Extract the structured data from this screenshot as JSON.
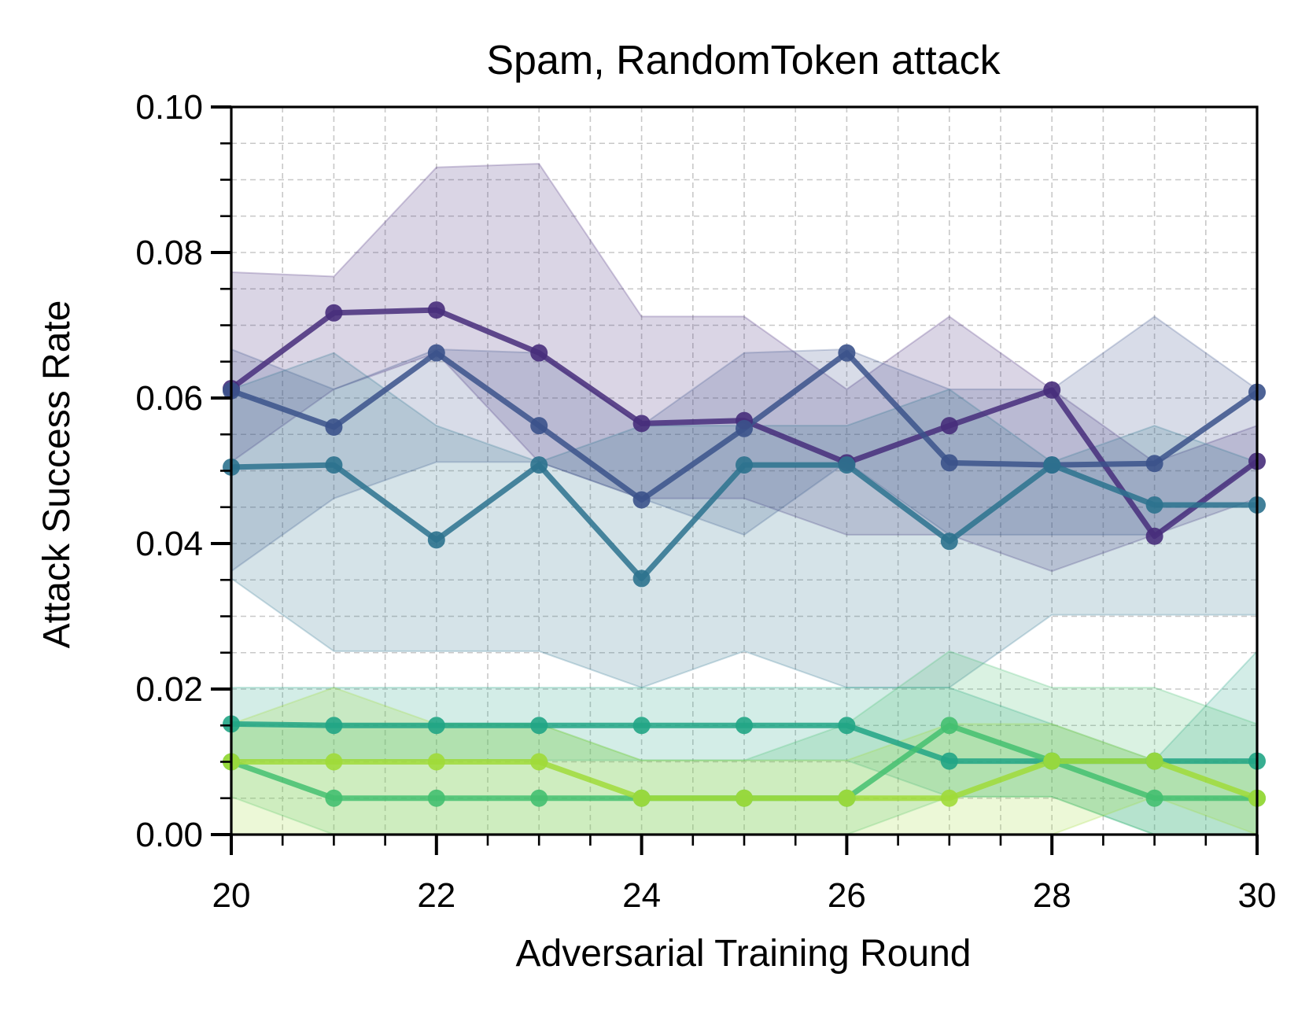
{
  "chart_data": {
    "type": "line",
    "title": "Spam, RandomToken attack",
    "xlabel": "Adversarial Training Round",
    "ylabel": "Attack Success Rate",
    "xlim": [
      20,
      30
    ],
    "ylim": [
      0,
      0.1
    ],
    "x_ticks": [
      "20",
      "22",
      "24",
      "26",
      "28",
      "30"
    ],
    "y_ticks": [
      "0.00",
      "0.02",
      "0.04",
      "0.06",
      "0.08",
      "0.10"
    ],
    "grid": true,
    "legend": "none",
    "x": [
      20,
      21,
      22,
      23,
      24,
      25,
      26,
      27,
      28,
      29,
      30
    ],
    "series": [
      {
        "color": "#472d7b",
        "values": [
          0.0613,
          0.0717,
          0.0721,
          0.0662,
          0.0565,
          0.0569,
          0.0511,
          0.0562,
          0.0611,
          0.041,
          0.0513
        ],
        "upper": [
          0.0773,
          0.0767,
          0.0917,
          0.0922,
          0.0712,
          0.0712,
          0.0612,
          0.0712,
          0.0612,
          0.0512,
          0.0562
        ],
        "lower": [
          0.0512,
          0.0612,
          0.0662,
          0.0512,
          0.0462,
          0.0462,
          0.0412,
          0.0412,
          0.0362,
          0.0412,
          0.0462
        ]
      },
      {
        "color": "#3b528b",
        "values": [
          0.061,
          0.056,
          0.0662,
          0.0562,
          0.046,
          0.0558,
          0.0662,
          0.0511,
          0.0508,
          0.051,
          0.0608
        ],
        "upper": [
          0.0667,
          0.0612,
          0.0667,
          0.0662,
          0.0562,
          0.0662,
          0.0667,
          0.0612,
          0.0612,
          0.0712,
          0.0612
        ],
        "lower": [
          0.0362,
          0.0462,
          0.0512,
          0.0512,
          0.0462,
          0.0412,
          0.0512,
          0.0412,
          0.0412,
          0.0412,
          0.0512
        ]
      },
      {
        "color": "#2c728e",
        "values": [
          0.0505,
          0.0508,
          0.0405,
          0.0508,
          0.0352,
          0.0508,
          0.0508,
          0.0403,
          0.0508,
          0.0453,
          0.0453
        ],
        "upper": [
          0.0612,
          0.0662,
          0.0562,
          0.0512,
          0.0562,
          0.0562,
          0.0562,
          0.0612,
          0.0512,
          0.0562,
          0.0512
        ],
        "lower": [
          0.0352,
          0.0252,
          0.0252,
          0.0252,
          0.0202,
          0.0252,
          0.0202,
          0.0202,
          0.0302,
          0.0302,
          0.0302
        ]
      },
      {
        "color": "#21a585",
        "values": [
          0.0152,
          0.015,
          0.015,
          0.015,
          0.015,
          0.015,
          0.015,
          0.0101,
          0.0101,
          0.0101,
          0.0101
        ],
        "upper": [
          0.0202,
          0.0202,
          0.0202,
          0.0202,
          0.0202,
          0.0202,
          0.0202,
          0.0202,
          0.0152,
          0.0102,
          0.0252
        ],
        "lower": [
          0.0102,
          0.0102,
          0.0102,
          0.0102,
          0.0102,
          0.0102,
          0.0102,
          0.0052,
          0.0052,
          0.0,
          0.0
        ]
      },
      {
        "color": "#44bf70",
        "values": [
          0.01,
          0.005,
          0.005,
          0.005,
          0.005,
          0.005,
          0.005,
          0.015,
          0.0101,
          0.005,
          0.005
        ],
        "upper": [
          0.0152,
          0.0152,
          0.0152,
          0.0152,
          0.0102,
          0.0102,
          0.0152,
          0.0252,
          0.0202,
          0.0202,
          0.0152
        ],
        "lower": [
          0.0052,
          0.0,
          0.0,
          0.0,
          0.0,
          0.0,
          0.0,
          0.0052,
          0.0052,
          0.0,
          0.0
        ]
      },
      {
        "color": "#a0da39",
        "values": [
          0.01,
          0.01,
          0.01,
          0.01,
          0.005,
          0.005,
          0.005,
          0.005,
          0.0101,
          0.0101,
          0.005
        ],
        "upper": [
          0.0152,
          0.0202,
          0.0152,
          0.0152,
          0.0102,
          0.0102,
          0.0102,
          0.0152,
          0.0152,
          0.0102,
          0.0102
        ],
        "lower": [
          0.0,
          0.0,
          0.0,
          0.0,
          0.0,
          0.0,
          0.0,
          0.0,
          0.0,
          0.0052,
          0.0
        ]
      }
    ]
  }
}
